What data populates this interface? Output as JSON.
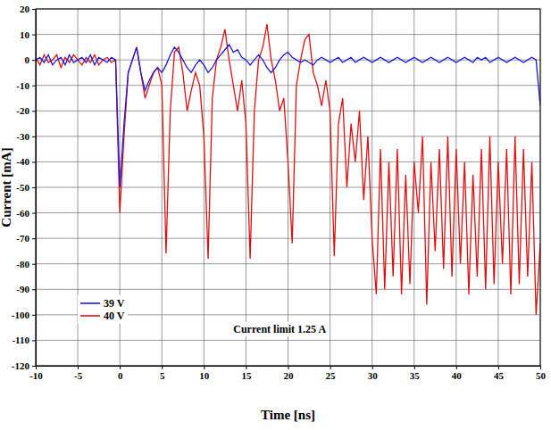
{
  "chart_data": {
    "type": "line",
    "x_label": "Time [ns]",
    "y_label": "Current [mA]",
    "xlim": [
      -10,
      50
    ],
    "ylim": [
      -120,
      20
    ],
    "xticks": [
      -10,
      -5,
      0,
      5,
      10,
      15,
      20,
      25,
      30,
      35,
      40,
      45,
      50
    ],
    "yticks": [
      -120,
      -110,
      -100,
      -90,
      -80,
      -70,
      -60,
      -50,
      -40,
      -30,
      -20,
      -10,
      0,
      10,
      20
    ],
    "grid": true,
    "legend": "lower left",
    "annotations": [
      {
        "text": "Current limit 1.25 A",
        "x": 13.5,
        "y": -107
      }
    ],
    "x": [
      -10,
      -9.5,
      -9,
      -8.5,
      -8,
      -7.5,
      -7,
      -6.5,
      -6,
      -5.5,
      -5,
      -4.5,
      -4,
      -3.5,
      -3,
      -2.5,
      -2,
      -1.5,
      -1,
      -0.5,
      0,
      0.5,
      1,
      1.5,
      2,
      2.5,
      3,
      3.5,
      4,
      4.5,
      5,
      5.5,
      6,
      6.5,
      7,
      7.5,
      8,
      8.5,
      9,
      9.5,
      10,
      10.5,
      11,
      11.5,
      12,
      12.5,
      13,
      13.5,
      14,
      14.5,
      15,
      15.5,
      16,
      16.5,
      17,
      17.5,
      18,
      18.5,
      19,
      19.5,
      20,
      20.5,
      21,
      21.5,
      22,
      22.5,
      23,
      23.5,
      24,
      24.5,
      25,
      25.5,
      26,
      26.5,
      27,
      27.5,
      28,
      28.5,
      29,
      29.5,
      30,
      30.5,
      31,
      31.5,
      32,
      32.5,
      33,
      33.5,
      34,
      34.5,
      35,
      35.5,
      36,
      36.5,
      37,
      37.5,
      38,
      38.5,
      39,
      39.5,
      40,
      40.5,
      41,
      41.5,
      42,
      42.5,
      43,
      43.5,
      44,
      44.5,
      45,
      45.5,
      46,
      46.5,
      47,
      47.5,
      48,
      48.5,
      49,
      49.5,
      50
    ],
    "series": [
      {
        "name": "39 V",
        "color": "#1a1adb",
        "values": [
          0,
          1,
          -1,
          2,
          -2,
          0,
          1,
          -2,
          2,
          -1,
          0,
          1,
          -1,
          2,
          -2,
          1,
          0,
          -1,
          1,
          0,
          -50,
          -25,
          -5,
          0,
          5,
          -5,
          -12,
          -8,
          -5,
          -3,
          -5,
          -2,
          2,
          5,
          3,
          0,
          -3,
          -5,
          -2,
          0,
          -2,
          -5,
          -3,
          0,
          2,
          4,
          6,
          3,
          4,
          1,
          0,
          -2,
          0,
          2,
          0,
          -3,
          -5,
          -3,
          0,
          2,
          3,
          1,
          0,
          -1,
          0,
          -1,
          -2,
          0,
          1,
          0,
          -1,
          0,
          1,
          -1,
          0,
          1,
          -1,
          0,
          1,
          0,
          -1,
          0,
          1,
          0,
          -1,
          0,
          1,
          0,
          -1,
          0,
          1,
          0,
          -1,
          0,
          1,
          0,
          -1,
          0,
          1,
          0,
          -1,
          0,
          1,
          0,
          -1,
          1,
          0,
          1,
          -1,
          0,
          1,
          0,
          -1,
          0,
          1,
          0,
          -1,
          0,
          1,
          0,
          -18
        ]
      },
      {
        "name": "40 V",
        "color": "#e01010",
        "values": [
          1,
          -2,
          2,
          -1,
          0,
          2,
          -3,
          1,
          -1,
          2,
          0,
          -2,
          1,
          -1,
          2,
          -2,
          0,
          1,
          -1,
          0,
          -60,
          -30,
          -5,
          0,
          5,
          -5,
          -15,
          -10,
          -5,
          -3,
          -10,
          -76,
          -20,
          3,
          5,
          -5,
          -20,
          -12,
          -5,
          -10,
          -30,
          -78,
          -15,
          0,
          5,
          12,
          0,
          -10,
          -20,
          -8,
          -25,
          -78,
          -20,
          0,
          5,
          14,
          0,
          -8,
          -20,
          -15,
          -40,
          -72,
          -10,
          0,
          8,
          10,
          -5,
          -10,
          -18,
          -8,
          -20,
          -77,
          -25,
          -15,
          -50,
          -25,
          -40,
          -20,
          -55,
          -30,
          -70,
          -92,
          -35,
          -90,
          -40,
          -85,
          -35,
          -92,
          -45,
          -88,
          -40,
          -60,
          -30,
          -96,
          -40,
          -75,
          -35,
          -82,
          -30,
          -85,
          -35,
          -80,
          -40,
          -92,
          -45,
          -85,
          -35,
          -90,
          -30,
          -88,
          -40,
          -80,
          -35,
          -92,
          -30,
          -88,
          -35,
          -85,
          -40,
          -100,
          -72
        ]
      }
    ]
  }
}
